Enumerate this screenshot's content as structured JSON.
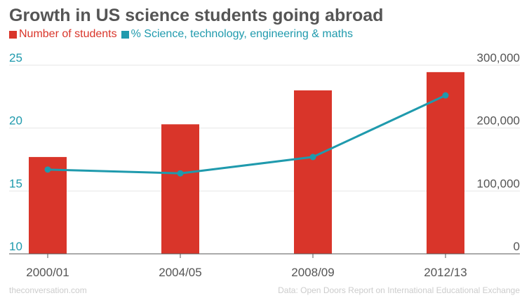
{
  "colors": {
    "bars": "#d9352a",
    "line": "#1f9aad",
    "text": "#555555",
    "grid": "#e6e6e6",
    "footer": "#cccccc"
  },
  "legend": [
    {
      "label": "Number of students",
      "color": "#d9352a",
      "icon": "square"
    },
    {
      "label": "% Science, technology, engineering & maths",
      "color": "#1f9aad",
      "icon": "square"
    }
  ],
  "footer": {
    "source_left": "theconversation.com",
    "source_right": "Data: Open Doors Report on International Educational Exchange"
  },
  "chart_data": {
    "type": "bar+line",
    "title": "Growth in US science students going abroad",
    "categories": [
      "2000/01",
      "2004/05",
      "2008/09",
      "2012/13"
    ],
    "series": [
      {
        "name": "Number of students",
        "type": "bar",
        "axis": "right",
        "values": [
          154000,
          206000,
          260000,
          289000
        ]
      },
      {
        "name": "% Science, technology, engineering & maths",
        "type": "line",
        "axis": "left",
        "values": [
          16.7,
          16.4,
          17.7,
          22.6
        ]
      }
    ],
    "left_axis": {
      "ylim": [
        10,
        25
      ],
      "ticks": [
        "10",
        "15",
        "20",
        "25"
      ],
      "color": "#1f9aad"
    },
    "right_axis": {
      "ylim": [
        0,
        300000
      ],
      "ticks": [
        "0",
        "100,000",
        "200,000",
        "300,000"
      ],
      "color": "#555555"
    },
    "grid": true
  }
}
